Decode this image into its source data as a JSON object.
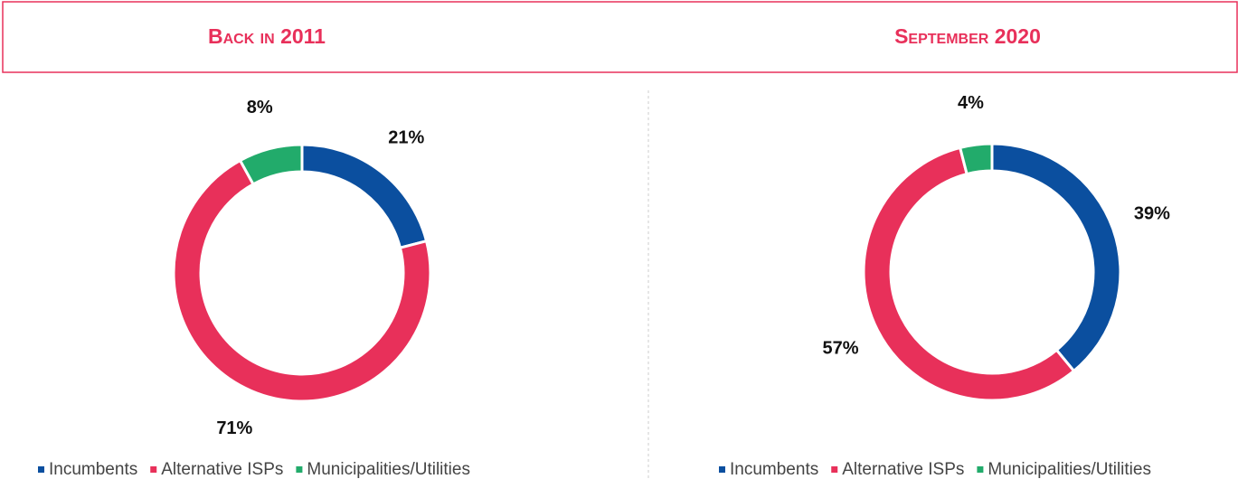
{
  "chart_data": [
    {
      "type": "donut",
      "title": "Back in 2011",
      "categories": [
        "Incumbents",
        "Alternative ISPs",
        "Municipalities/Utilities"
      ],
      "values": [
        21,
        71,
        8
      ],
      "value_labels": [
        "21%",
        "71%",
        "8%"
      ],
      "colors": [
        "#0b4f9f",
        "#e8305a",
        "#22ab6b"
      ]
    },
    {
      "type": "donut",
      "title": "September 2020",
      "categories": [
        "Incumbents",
        "Alternative ISPs",
        "Municipalities/Utilities"
      ],
      "values": [
        39,
        57,
        4
      ],
      "value_labels": [
        "39%",
        "57%",
        "4%"
      ],
      "colors": [
        "#0b4f9f",
        "#e8305a",
        "#22ab6b"
      ]
    }
  ]
}
